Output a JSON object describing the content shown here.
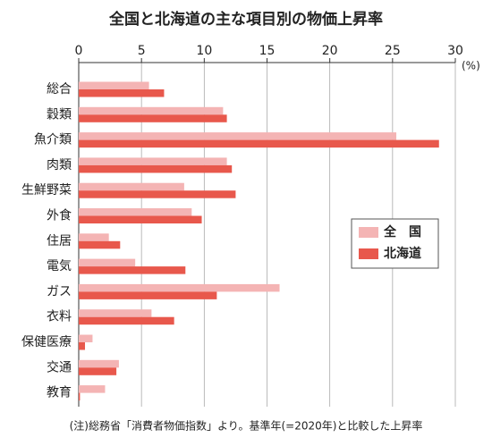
{
  "chart_data": {
    "type": "hbar",
    "title": "全国と北海道の主な項目別の物価上昇率",
    "x_unit": "(%)",
    "note": "(注)総務省「消費者物価指数」より。基準年(=2020年)と比較した上昇率",
    "categories": [
      "総合",
      "穀類",
      "魚介類",
      "肉類",
      "生鮮野菜",
      "外食",
      "住居",
      "電気",
      "ガス",
      "衣料",
      "保健医療",
      "交通",
      "教育"
    ],
    "series": [
      {
        "name": "全　国",
        "color": "#f4b4b4",
        "values": [
          5.6,
          11.5,
          25.3,
          11.8,
          8.4,
          9.0,
          2.4,
          4.5,
          16.0,
          5.8,
          1.1,
          3.2,
          2.1
        ]
      },
      {
        "name": "北海道",
        "color": "#e8584c",
        "values": [
          6.8,
          11.8,
          28.7,
          12.2,
          12.5,
          9.8,
          3.3,
          8.5,
          11.0,
          7.6,
          0.5,
          3.0,
          0.1
        ]
      }
    ],
    "xlim": [
      0,
      30
    ],
    "xticks": [
      0,
      5,
      10,
      15,
      20,
      25,
      30
    ],
    "grid": true,
    "legend": "right"
  }
}
